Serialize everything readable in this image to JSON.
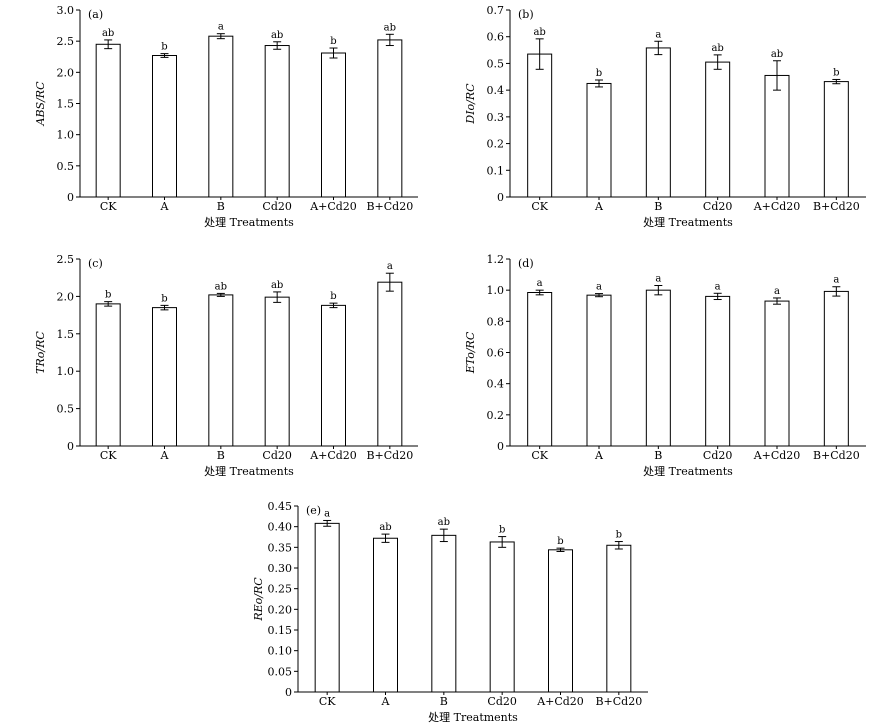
{
  "chart_data": [
    {
      "type": "bar",
      "panel_label": "(a)",
      "ylabel": "ABS/RC",
      "xlabel": "处理 Treatments",
      "categories": [
        "CK",
        "A",
        "B",
        "Cd20",
        "A+Cd20",
        "B+Cd20"
      ],
      "values": [
        2.45,
        2.27,
        2.58,
        2.43,
        2.31,
        2.52
      ],
      "errors": [
        0.07,
        0.03,
        0.04,
        0.06,
        0.08,
        0.09
      ],
      "significance": [
        "ab",
        "b",
        "a",
        "ab",
        "b",
        "ab"
      ],
      "ylim": [
        0,
        3.0
      ],
      "yticks": [
        "0",
        "0.5",
        "1.0",
        "1.5",
        "2.0",
        "2.5",
        "3.0"
      ]
    },
    {
      "type": "bar",
      "panel_label": "(b)",
      "ylabel": "DIo/RC",
      "xlabel": "处理 Treatments",
      "categories": [
        "CK",
        "A",
        "B",
        "Cd20",
        "A+Cd20",
        "B+Cd20"
      ],
      "values": [
        0.535,
        0.425,
        0.558,
        0.505,
        0.455,
        0.432
      ],
      "errors": [
        0.057,
        0.013,
        0.025,
        0.027,
        0.055,
        0.008
      ],
      "significance": [
        "ab",
        "b",
        "a",
        "ab",
        "ab",
        "b"
      ],
      "ylim": [
        0,
        0.7
      ],
      "yticks": [
        "0",
        "0.1",
        "0.2",
        "0.3",
        "0.4",
        "0.5",
        "0.6",
        "0.7"
      ]
    },
    {
      "type": "bar",
      "panel_label": "(c)",
      "ylabel": "TRo/RC",
      "xlabel": "处理 Treatments",
      "categories": [
        "CK",
        "A",
        "B",
        "Cd20",
        "A+Cd20",
        "B+Cd20"
      ],
      "values": [
        1.9,
        1.85,
        2.02,
        1.99,
        1.88,
        2.19
      ],
      "errors": [
        0.03,
        0.03,
        0.02,
        0.07,
        0.03,
        0.12
      ],
      "significance": [
        "b",
        "b",
        "ab",
        "ab",
        "b",
        "a"
      ],
      "ylim": [
        0,
        2.5
      ],
      "yticks": [
        "0",
        "0.5",
        "1.0",
        "1.5",
        "2.0",
        "2.5"
      ]
    },
    {
      "type": "bar",
      "panel_label": "(d)",
      "ylabel": "ETo/RC",
      "xlabel": "处理 Treatments",
      "categories": [
        "CK",
        "A",
        "B",
        "Cd20",
        "A+Cd20",
        "B+Cd20"
      ],
      "values": [
        0.985,
        0.968,
        1.0,
        0.96,
        0.93,
        0.992
      ],
      "errors": [
        0.015,
        0.01,
        0.03,
        0.02,
        0.02,
        0.03
      ],
      "significance": [
        "a",
        "a",
        "a",
        "a",
        "a",
        "a"
      ],
      "ylim": [
        0,
        1.2
      ],
      "yticks": [
        "0",
        "0.2",
        "0.4",
        "0.6",
        "0.8",
        "1.0",
        "1.2"
      ]
    },
    {
      "type": "bar",
      "panel_label": "(e)",
      "ylabel": "REo/RC",
      "xlabel": "处理 Treatments",
      "categories": [
        "CK",
        "A",
        "B",
        "Cd20",
        "A+Cd20",
        "B+Cd20"
      ],
      "values": [
        0.408,
        0.372,
        0.379,
        0.363,
        0.344,
        0.355
      ],
      "errors": [
        0.007,
        0.01,
        0.015,
        0.013,
        0.004,
        0.009
      ],
      "significance": [
        "a",
        "ab",
        "ab",
        "b",
        "b",
        "b"
      ],
      "ylim": [
        0,
        0.45
      ],
      "yticks": [
        "0",
        "0.05",
        "0.10",
        "0.15",
        "0.20",
        "0.25",
        "0.30",
        "0.35",
        "0.40",
        "0.45"
      ]
    }
  ]
}
